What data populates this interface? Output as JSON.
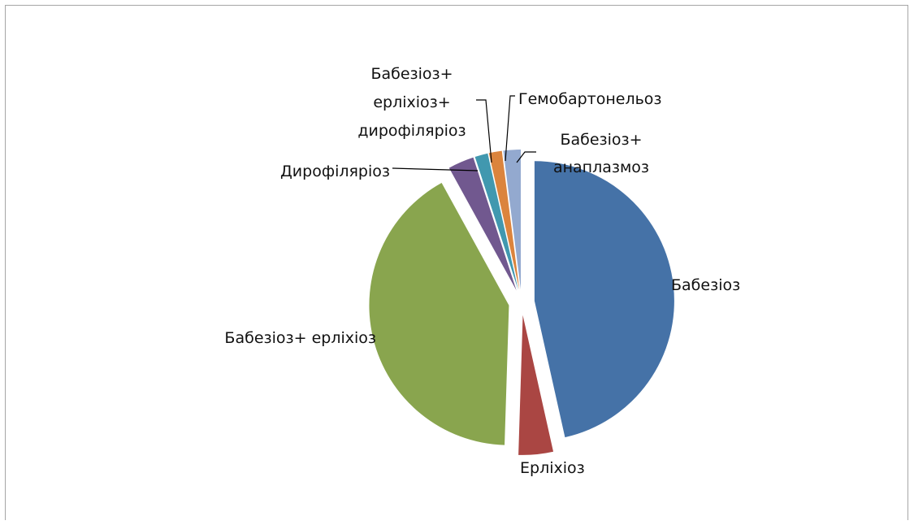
{
  "chart_data": {
    "type": "pie",
    "title": "",
    "exploded": true,
    "slices": [
      {
        "label": "Бабезіоз",
        "value": 46.5,
        "color": "#4572a7"
      },
      {
        "label": "Ерліхіоз",
        "value": 4.0,
        "color": "#aa4643"
      },
      {
        "label": "Бабезіоз+ ерліхіоз",
        "value": 41.5,
        "color": "#89a54e"
      },
      {
        "label": "Дирофіляріоз",
        "value": 3.0,
        "color": "#71588f"
      },
      {
        "label": "Бабезіоз+ ерліхіоз+ дирофіляріоз",
        "label_lines": [
          "Бабезіоз+",
          "ерліхіоз+",
          "дирофіляріоз"
        ],
        "value": 1.5,
        "color": "#4198af"
      },
      {
        "label": "Гемобартонельоз",
        "value": 1.5,
        "color": "#db843d"
      },
      {
        "label": "Бабезіоз+ анаплазмоз",
        "label_lines": [
          "Бабезіоз+",
          "анаплазмоз"
        ],
        "value": 2.0,
        "color": "#93a9cf"
      }
    ]
  }
}
